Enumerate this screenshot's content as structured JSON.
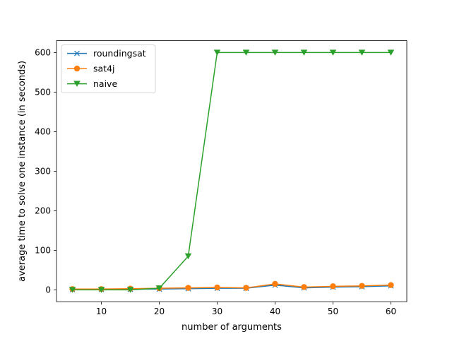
{
  "chart_data": {
    "type": "line",
    "title": "",
    "xlabel": "number of arguments",
    "ylabel": "average time to solve one instance (in seconds)",
    "xlim": [
      2.25,
      62.75
    ],
    "ylim": [
      -30,
      630
    ],
    "xticks": [
      10,
      20,
      30,
      40,
      50,
      60
    ],
    "yticks": [
      0,
      100,
      200,
      300,
      400,
      500,
      600
    ],
    "grid": false,
    "legend_position": "upper-left",
    "x": [
      5,
      10,
      15,
      20,
      25,
      30,
      35,
      40,
      45,
      50,
      55,
      60
    ],
    "series": [
      {
        "name": "roundingsat",
        "color": "#1f77b4",
        "marker": "x",
        "values": [
          0.5,
          1,
          1.5,
          2,
          3,
          4,
          4,
          12,
          5,
          7,
          8,
          10
        ]
      },
      {
        "name": "sat4j",
        "color": "#ff7f0e",
        "marker": "circle",
        "values": [
          2,
          2,
          3,
          4,
          5,
          6,
          5,
          15,
          7,
          9,
          10,
          12
        ]
      },
      {
        "name": "naive",
        "color": "#2ca02c",
        "marker": "triangle-down",
        "values": [
          0,
          0,
          0,
          4,
          85,
          600,
          600,
          600,
          600,
          600,
          600,
          600
        ]
      }
    ]
  }
}
